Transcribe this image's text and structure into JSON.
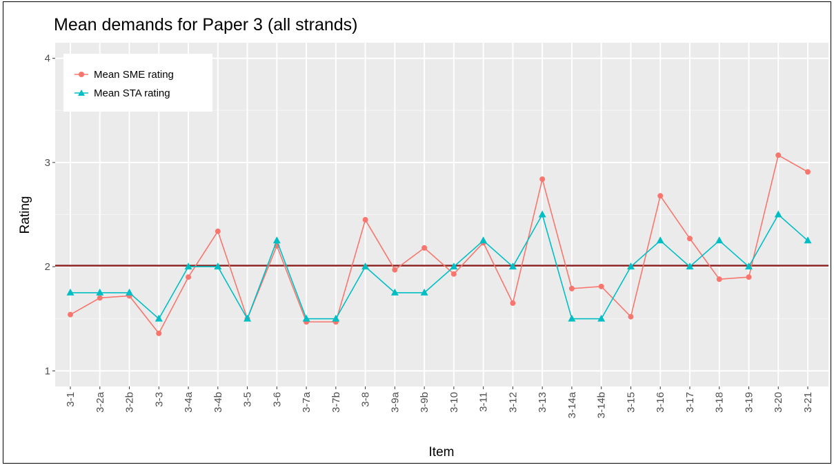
{
  "chart_data": {
    "type": "line",
    "title": "Mean demands for Paper 3 (all strands)",
    "xlabel": "Item",
    "ylabel": "Rating",
    "ylim": [
      0.85,
      4.15
    ],
    "yticks": [
      1,
      2,
      3,
      4
    ],
    "grid": true,
    "legend_position": "top-left",
    "categories": [
      "3-1",
      "3-2a",
      "3-2b",
      "3-3",
      "3-4a",
      "3-4b",
      "3-5",
      "3-6",
      "3-7a",
      "3-7b",
      "3-8",
      "3-9a",
      "3-9b",
      "3-10",
      "3-11",
      "3-12",
      "3-13",
      "3-14a",
      "3-14b",
      "3-15",
      "3-16",
      "3-17",
      "3-18",
      "3-19",
      "3-20",
      "3-21"
    ],
    "series": [
      {
        "name": "Mean SME rating",
        "color": "#f8766d",
        "marker": "circle",
        "values": [
          1.54,
          1.7,
          1.72,
          1.36,
          1.9,
          2.34,
          1.5,
          2.2,
          1.47,
          1.47,
          2.45,
          1.97,
          2.18,
          1.93,
          2.23,
          1.65,
          2.84,
          1.79,
          1.81,
          1.52,
          2.68,
          2.27,
          1.88,
          1.9,
          3.07,
          2.91
        ]
      },
      {
        "name": "Mean STA rating",
        "color": "#00bfc4",
        "marker": "triangle",
        "values": [
          1.75,
          1.75,
          1.75,
          1.5,
          2.0,
          2.0,
          1.5,
          2.25,
          1.5,
          1.5,
          2.0,
          1.75,
          1.75,
          2.0,
          2.25,
          2.0,
          2.5,
          1.5,
          1.5,
          2.0,
          2.25,
          2.0,
          2.25,
          2.0,
          2.5,
          2.25
        ]
      }
    ],
    "reference_line": {
      "y": 2.01,
      "color": "#8b2323"
    }
  }
}
